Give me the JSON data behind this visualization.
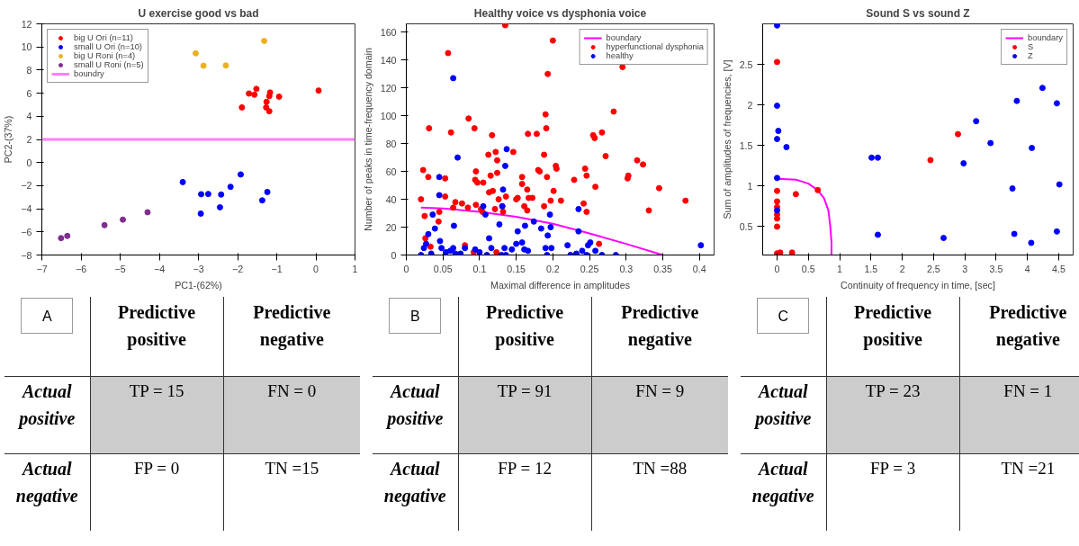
{
  "chart_data": [
    {
      "type": "scatter",
      "title": "U exercise good vs bad",
      "xlabel": "PC1-(62%)",
      "ylabel": "PC2-(37%)",
      "xlim": [
        -7,
        1
      ],
      "ylim": [
        -8,
        12
      ],
      "xticks": [
        -7,
        -6,
        -5,
        -4,
        -3,
        -2,
        -1,
        0,
        1
      ],
      "yticks": [
        -8,
        -6,
        -4,
        -2,
        0,
        2,
        4,
        6,
        8,
        10,
        12
      ],
      "legend": "top left",
      "marker": "circle",
      "series": [
        {
          "name": "big U Ori (n=11)",
          "color": "#ff0000",
          "x": [
            0.07,
            -1.71,
            -1.57,
            -1.52,
            -1.17,
            -1.19,
            -0.94,
            -1.26,
            -1.27,
            -1.19,
            -1.89
          ],
          "values": [
            6.23,
            5.97,
            5.87,
            6.37,
            6.06,
            5.75,
            5.7,
            5.25,
            4.77,
            4.44,
            4.77
          ]
        },
        {
          "name": "small U Ori (n=10)",
          "color": "#0000ff",
          "x": [
            -3.4,
            -2.93,
            -2.75,
            -2.42,
            -2.18,
            -1.92,
            -1.24,
            -1.37,
            -2.45,
            -2.94
          ],
          "values": [
            -1.69,
            -2.74,
            -2.72,
            -2.77,
            -2.1,
            -1.03,
            -2.55,
            -3.27,
            -3.87,
            -4.42
          ]
        },
        {
          "name": "big U Roni (n=4)",
          "color": "#edb120",
          "x": [
            -3.07,
            -2.87,
            -2.3,
            -1.32
          ],
          "values": [
            9.45,
            8.38,
            8.4,
            10.52
          ]
        },
        {
          "name": "small U Roni (n=5)",
          "color": "#7e2f8e",
          "x": [
            -4.3,
            -4.93,
            -5.4,
            -6.35,
            -6.51
          ],
          "values": [
            -4.3,
            -4.94,
            -5.42,
            -6.35,
            -6.54
          ]
        }
      ],
      "ref_lines": [
        {
          "axis": "y",
          "value": 2,
          "label": "boundry",
          "color": "#ff80ff"
        }
      ]
    },
    {
      "type": "scatter",
      "title": "Healthy voice vs dysphonia voice",
      "xlabel": "Maximal difference in amplitudes",
      "ylabel": "Number of peaks in time-frequency domain",
      "xlim": [
        0,
        0.42
      ],
      "ylim": [
        0,
        166
      ],
      "xticks": [
        0,
        0.05,
        0.1,
        0.15,
        0.2,
        0.25,
        0.3,
        0.35,
        0.4
      ],
      "yticks": [
        0,
        20,
        40,
        60,
        80,
        100,
        120,
        140,
        160
      ],
      "legend": "top right",
      "marker": "circle",
      "series": [
        {
          "name": "boundary",
          "type": "line",
          "color": "#ff00ff",
          "marker": "none",
          "x": [
            0.02,
            0.05,
            0.1,
            0.15,
            0.2,
            0.25,
            0.3,
            0.35
          ],
          "values": [
            34,
            33.5,
            31,
            27.5,
            22.5,
            15.5,
            8,
            0
          ]
        },
        {
          "name": "hyperfunctional dysphonia",
          "color": "#ff0000",
          "x": [
            0.02,
            0.023,
            0.025,
            0.031,
            0.03,
            0.026,
            0.033,
            0.045,
            0.044,
            0.057,
            0.053,
            0.053,
            0.061,
            0.064,
            0.067,
            0.076,
            0.08,
            0.085,
            0.084,
            0.092,
            0.093,
            0.095,
            0.094,
            0.097,
            0.095,
            0.105,
            0.102,
            0.104,
            0.112,
            0.113,
            0.117,
            0.115,
            0.118,
            0.122,
            0.124,
            0.124,
            0.123,
            0.121,
            0.126,
            0.131,
            0.132,
            0.135,
            0.136,
            0.146,
            0.15,
            0.152,
            0.158,
            0.158,
            0.161,
            0.166,
            0.165,
            0.167,
            0.165,
            0.178,
            0.18,
            0.182,
            0.172,
            0.188,
            0.19,
            0.191,
            0.192,
            0.188,
            0.193,
            0.2,
            0.201,
            0.204,
            0.205,
            0.197,
            0.211,
            0.229,
            0.244,
            0.246,
            0.242,
            0.246,
            0.255,
            0.257,
            0.258,
            0.263,
            0.267,
            0.272,
            0.283,
            0.295,
            0.302,
            0.303,
            0.315,
            0.323,
            0.331,
            0.345,
            0.381
          ],
          "values": [
            40,
            61,
            28,
            91,
            56,
            12,
            6,
            31,
            24,
            145,
            55,
            42,
            88,
            34,
            38,
            37,
            7,
            98,
            34,
            2,
            91,
            60,
            54,
            52,
            36,
            52,
            33,
            31,
            72,
            45,
            86,
            57,
            46,
            74,
            68,
            59,
            2,
            33,
            40,
            35,
            31,
            165,
            42,
            74,
            40,
            41,
            56,
            51,
            35,
            87,
            47,
            41,
            32,
            87,
            61,
            60,
            41,
            72,
            101,
            91,
            56,
            35,
            130,
            154,
            46,
            64,
            62,
            39,
            39,
            54,
            62,
            57,
            37,
            31,
            86,
            84,
            49,
            8,
            88,
            71,
            103,
            135,
            55,
            57,
            68,
            65,
            32,
            48,
            39
          ]
        },
        {
          "name": "healthy",
          "color": "#0000ff",
          "x": [
            0.064,
            0.07,
            0.137,
            0.135,
            0.132,
            0.131,
            0.045,
            0.045,
            0.105,
            0.108,
            0.036,
            0.039,
            0.03,
            0.027,
            0.046,
            0.065,
            0.127,
            0.113,
            0.174,
            0.152,
            0.162,
            0.196,
            0.235,
            0.235,
            0.184,
            0.193,
            0.197,
            0.02,
            0.024,
            0.034,
            0.048,
            0.054,
            0.06,
            0.064,
            0.067,
            0.074,
            0.08,
            0.094,
            0.1,
            0.11,
            0.116,
            0.13,
            0.134,
            0.136,
            0.144,
            0.15,
            0.158,
            0.161,
            0.166,
            0.19,
            0.192,
            0.198,
            0.22,
            0.224,
            0.232,
            0.24,
            0.246,
            0.248,
            0.251,
            0.258,
            0.267,
            0.286,
            0.402
          ],
          "values": [
            127,
            70,
            76,
            64,
            47,
            35,
            56,
            43,
            35,
            29,
            29,
            19,
            15,
            8,
            10,
            21,
            22,
            12,
            24,
            17,
            21,
            29,
            33,
            17,
            19,
            14,
            20,
            0,
            5,
            1,
            5,
            2,
            3,
            5,
            1,
            1,
            5,
            4,
            2,
            0,
            5,
            0,
            5,
            0,
            4,
            8,
            9,
            4,
            3,
            5,
            0,
            5,
            7,
            0,
            1,
            3,
            0,
            7,
            9,
            3,
            0,
            0,
            7
          ]
        }
      ]
    },
    {
      "type": "scatter",
      "title": "Sound S vs sound Z",
      "xlabel": "Continuity of frequency in time, [sec]",
      "ylabel": "Sum of amplitudes of frequencies, [V]",
      "xlim": [
        -0.23,
        4.73
      ],
      "ylim": [
        0.15,
        3
      ],
      "xticks": [
        0,
        0.5,
        1,
        1.5,
        2,
        2.5,
        3,
        3.5,
        4,
        4.5
      ],
      "yticks": [
        0.5,
        1,
        1.5,
        2,
        2.5
      ],
      "legend": "top right",
      "marker": "circle",
      "series": [
        {
          "name": "boundary",
          "type": "line",
          "color": "#ff00ff",
          "marker": "none",
          "x": [
            0,
            0.3,
            0.5,
            0.65,
            0.75,
            0.82,
            0.85,
            0.87,
            0.87
          ],
          "values": [
            1.09,
            1.08,
            1.03,
            0.95,
            0.85,
            0.7,
            0.5,
            0.3,
            0.15
          ]
        },
        {
          "name": "S",
          "color": "#ff0000",
          "x": [
            0,
            0,
            0,
            0,
            0,
            0,
            0,
            0,
            0.05,
            0.24,
            0.3,
            0.65,
            2.89,
            2.45
          ],
          "values": [
            2.53,
            0.94,
            0.81,
            0.74,
            0.65,
            0.6,
            0.5,
            0.17,
            0.18,
            0.18,
            0.9,
            0.95,
            1.64,
            1.32
          ]
        },
        {
          "name": "Z",
          "color": "#0000ff",
          "x": [
            0,
            0,
            0.02,
            0,
            0.15,
            0,
            0,
            1.51,
            1.61,
            1.61,
            2.66,
            2.98,
            3.18,
            3.41,
            3.76,
            3.79,
            3.83,
            4.07,
            4.06,
            4.24,
            4.47,
            4.51,
            4.47
          ],
          "values": [
            2.98,
            1.99,
            1.68,
            1.58,
            1.48,
            1.1,
            0.7,
            1.35,
            1.35,
            0.4,
            0.36,
            1.28,
            1.8,
            1.53,
            0.97,
            0.41,
            2.05,
            1.47,
            0.3,
            2.21,
            2.02,
            1.02,
            0.44
          ]
        }
      ]
    },
    {
      "type": "other",
      "annotations": [
        "A",
        "Predictive positive",
        "Predictive negative",
        "Actual positive",
        "TP = 15",
        "FN = 0",
        "Actual negative",
        "FP = 0",
        "TN =15"
      ]
    },
    {
      "type": "other",
      "annotations": [
        "B",
        "Predictive positive",
        "Predictive negative",
        "Actual positive",
        "TP = 91",
        "FN = 9",
        "Actual negative",
        "FP = 12",
        "TN =88"
      ]
    },
    {
      "type": "other",
      "annotations": [
        "C",
        "Predictive positive",
        "Predictive negative",
        "Actual positive",
        "TP = 23",
        "FN = 1",
        "Actual negative",
        "FP = 3",
        "TN =21"
      ]
    }
  ]
}
